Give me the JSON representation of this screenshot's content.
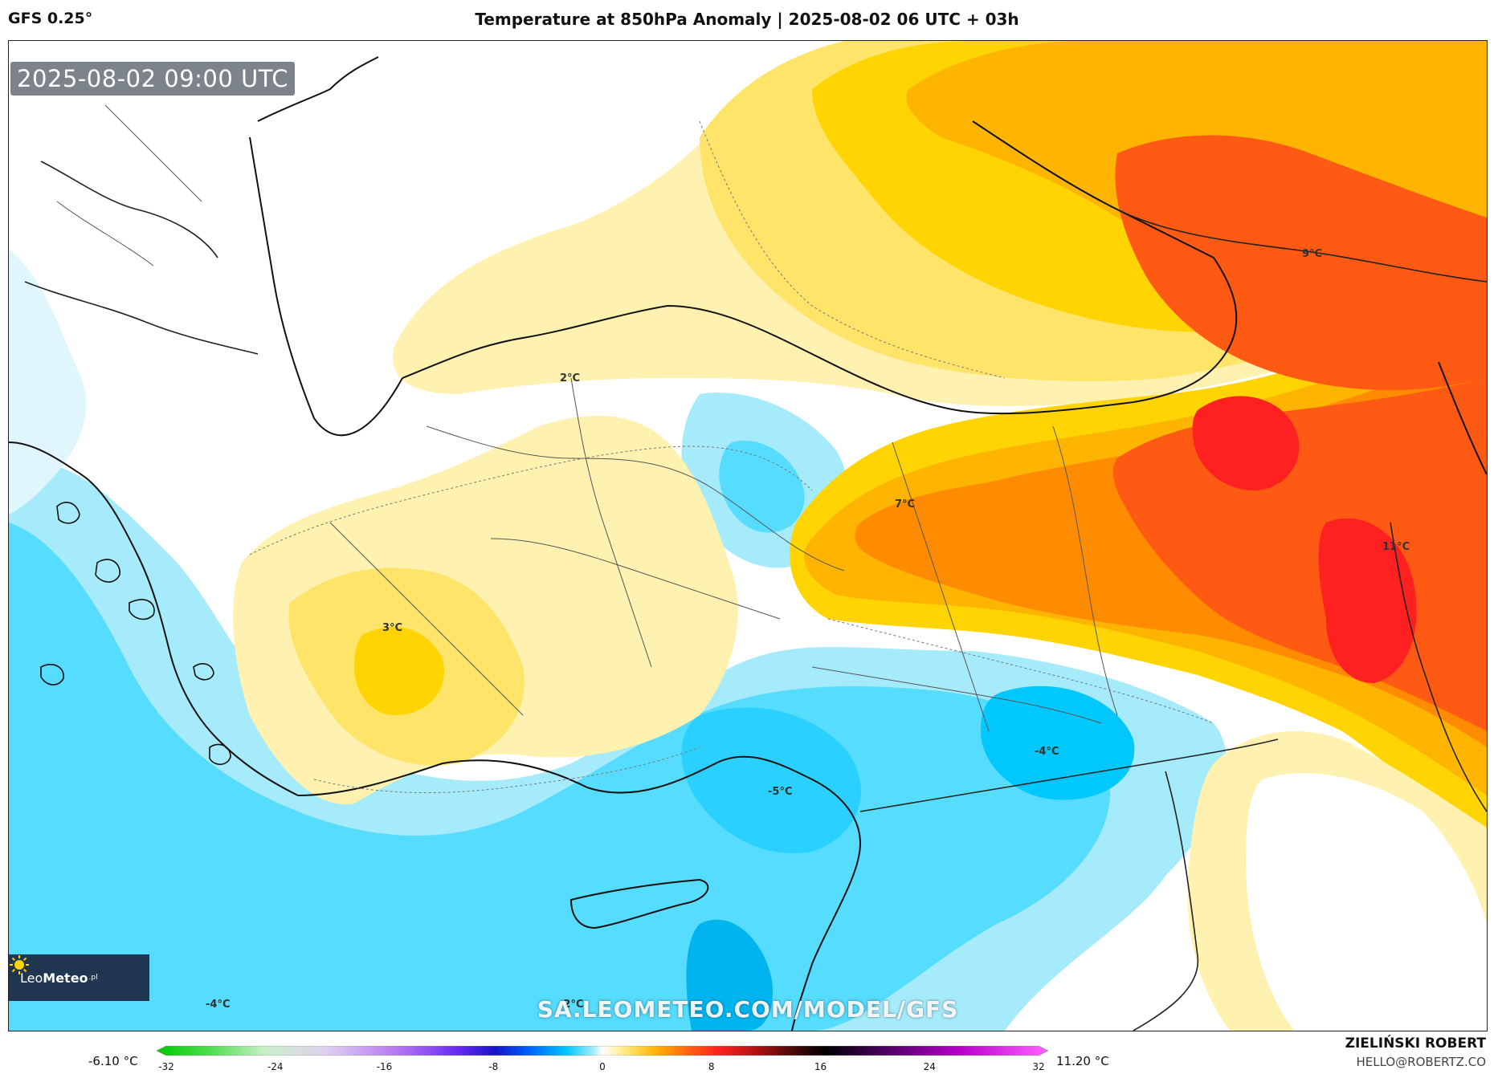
{
  "header": {
    "model": "GFS 0.25°",
    "title": "Temperature at 850hPa Anomaly | 2025-08-02 06 UTC + 03h"
  },
  "map": {
    "timestamp": "2025-08-02 09:00 UTC",
    "watermark": "SA.LEOMETEO.COM/MODEL/GFS",
    "logo": {
      "brand": "Leo",
      "brand2": "Meteo",
      "suffix": ".pl"
    },
    "labels": [
      {
        "id": "l1",
        "text": "2°C"
      },
      {
        "id": "l2",
        "text": "7°C"
      },
      {
        "id": "l3",
        "text": "9°C"
      },
      {
        "id": "l4",
        "text": "11°C"
      },
      {
        "id": "l5",
        "text": "3°C"
      },
      {
        "id": "l6",
        "text": "-4°C"
      },
      {
        "id": "l7",
        "text": "-5°C"
      },
      {
        "id": "l8",
        "text": "-4°C"
      },
      {
        "id": "l9",
        "text": "-2°C"
      }
    ]
  },
  "colorbar": {
    "min_label": "-6.10 °C",
    "max_label": "11.20 °C",
    "ticks": [
      "-32",
      "-24",
      "-16",
      "-8",
      "0",
      "8",
      "16",
      "24",
      "32"
    ],
    "tick_values": [
      -32,
      -24,
      -16,
      -8,
      0,
      8,
      16,
      24,
      32
    ],
    "range": [
      -32,
      32
    ]
  },
  "footer": {
    "author": "ZIELIŃSKI ROBERT",
    "email": "HELLO@ROBERTZ.CO"
  },
  "colors": {
    "deep_cyan": "#00c8ff",
    "cyan": "#55dcff",
    "light_cyan": "#a6ebfb",
    "pale_blue": "#dff6fd",
    "pale_yellow": "#fff2b0",
    "yellow": "#ffe46a",
    "gold": "#ffd400",
    "orange_light": "#ffb400",
    "orange": "#ff8c00",
    "red_orange": "#ff5a14",
    "red": "#ff2020"
  }
}
